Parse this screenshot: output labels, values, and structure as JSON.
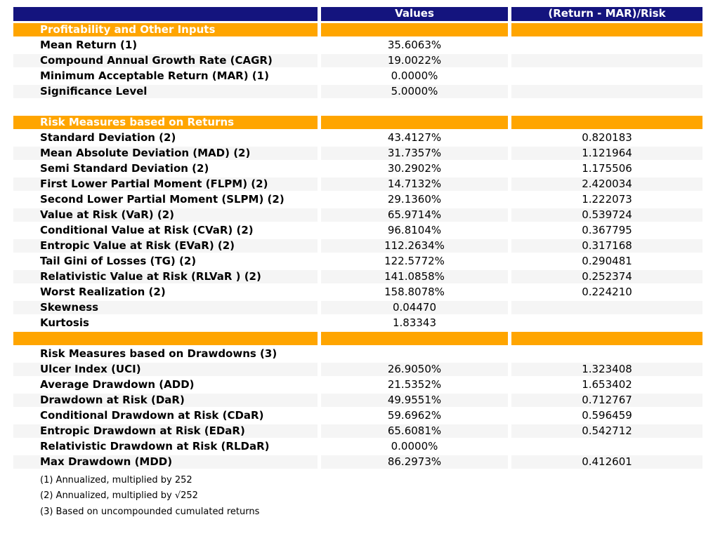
{
  "chart_data": {
    "type": "table",
    "columns": {
      "metric": "",
      "values": "Values",
      "ratio": "(Return - MAR)/Risk"
    },
    "rows": [
      {
        "type": "section",
        "label": "Profitability and Other Inputs",
        "value": "",
        "ratio": ""
      },
      {
        "type": "data",
        "label": "Mean Return (1)",
        "value": "35.6063%",
        "ratio": ""
      },
      {
        "type": "data",
        "label": "Compound Annual Growth Rate (CAGR)",
        "value": "19.0022%",
        "ratio": ""
      },
      {
        "type": "data",
        "label": "Minimum Acceptable Return (MAR) (1)",
        "value": "0.0000%",
        "ratio": ""
      },
      {
        "type": "data",
        "label": "Significance Level",
        "value": "5.0000%",
        "ratio": ""
      },
      {
        "type": "spacer",
        "label": "",
        "value": "",
        "ratio": ""
      },
      {
        "type": "section",
        "label": "Risk Measures based on Returns",
        "value": "",
        "ratio": ""
      },
      {
        "type": "data",
        "label": "Standard Deviation (2)",
        "value": "43.4127%",
        "ratio": "0.820183"
      },
      {
        "type": "data",
        "label": "Mean Absolute Deviation (MAD) (2)",
        "value": "31.7357%",
        "ratio": "1.121964"
      },
      {
        "type": "data",
        "label": "Semi Standard Deviation (2)",
        "value": "30.2902%",
        "ratio": "1.175506"
      },
      {
        "type": "data",
        "label": "First Lower Partial Moment (FLPM) (2)",
        "value": "14.7132%",
        "ratio": "2.420034"
      },
      {
        "type": "data",
        "label": "Second Lower Partial Moment (SLPM) (2)",
        "value": "29.1360%",
        "ratio": "1.222073"
      },
      {
        "type": "data",
        "label": "Value at Risk (VaR) (2)",
        "value": "65.9714%",
        "ratio": "0.539724"
      },
      {
        "type": "data",
        "label": "Conditional Value at Risk (CVaR) (2)",
        "value": "96.8104%",
        "ratio": "0.367795"
      },
      {
        "type": "data",
        "label": "Entropic Value at Risk (EVaR) (2)",
        "value": "112.2634%",
        "ratio": "0.317168"
      },
      {
        "type": "data",
        "label": "Tail Gini of Losses (TG) (2)",
        "value": "122.5772%",
        "ratio": "0.290481"
      },
      {
        "type": "data",
        "label": "Relativistic Value at Risk (RLVaR ) (2)",
        "value": "141.0858%",
        "ratio": "0.252374"
      },
      {
        "type": "data",
        "label": "Worst Realization (2)",
        "value": "158.8078%",
        "ratio": "0.224210"
      },
      {
        "type": "data",
        "label": "Skewness",
        "value": "0.04470",
        "ratio": ""
      },
      {
        "type": "data",
        "label": "Kurtosis",
        "value": "1.83343",
        "ratio": ""
      },
      {
        "type": "section",
        "label": "",
        "value": "",
        "ratio": ""
      },
      {
        "type": "subtitle",
        "label": "Risk Measures based on Drawdowns (3)",
        "value": "",
        "ratio": ""
      },
      {
        "type": "data",
        "label": "Ulcer Index (UCI)",
        "value": "26.9050%",
        "ratio": "1.323408"
      },
      {
        "type": "data",
        "label": "Average Drawdown (ADD)",
        "value": "21.5352%",
        "ratio": "1.653402"
      },
      {
        "type": "data",
        "label": "Drawdown at Risk (DaR)",
        "value": "49.9551%",
        "ratio": "0.712767"
      },
      {
        "type": "data",
        "label": "Conditional Drawdown at Risk (CDaR)",
        "value": "59.6962%",
        "ratio": "0.596459"
      },
      {
        "type": "data",
        "label": "Entropic Drawdown at Risk (EDaR)",
        "value": "65.6081%",
        "ratio": "0.542712"
      },
      {
        "type": "data",
        "label": "Relativistic Drawdown at Risk (RLDaR)",
        "value": "0.0000%",
        "ratio": ""
      },
      {
        "type": "data",
        "label": "Max Drawdown (MDD)",
        "value": "86.2973%",
        "ratio": "0.412601"
      }
    ],
    "footnotes": [
      "(1) Annualized, multiplied by 252",
      "(2) Annualized, multiplied by √252",
      "(3) Based on uncompounded cumulated returns"
    ]
  },
  "colors": {
    "header_bg": "#14147E",
    "section_bg": "#FFA500",
    "stripe_bg": "#F5F5F5",
    "header_text": "#FFFFFF",
    "body_text": "#000000"
  }
}
